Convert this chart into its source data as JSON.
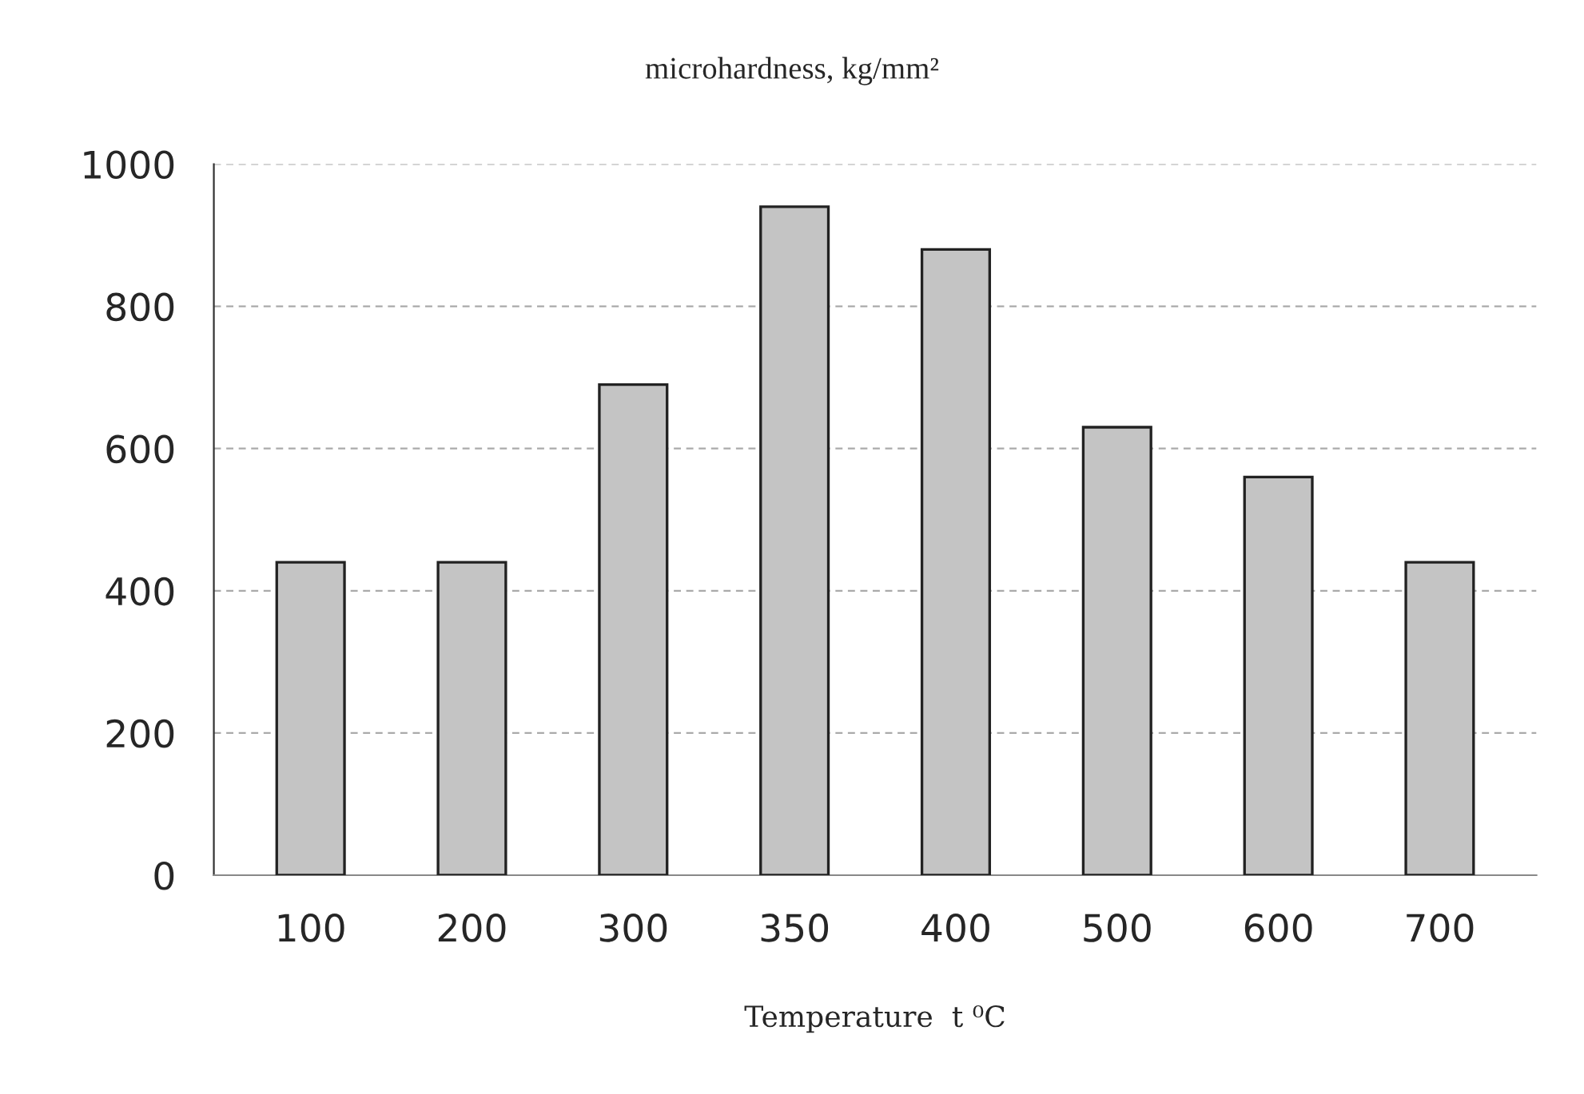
{
  "chart_data": {
    "type": "bar",
    "title": "microhardness, kg/mm²",
    "xlabel": "Temperature  t ⁰C",
    "categories": [
      "100",
      "200",
      "300",
      "350",
      "400",
      "500",
      "600",
      "700"
    ],
    "values": [
      440,
      440,
      690,
      940,
      880,
      630,
      560,
      440
    ],
    "color": "#c4c4c4",
    "ylim": [
      0,
      1000
    ],
    "yticks": [
      0,
      200,
      400,
      600,
      800,
      1000
    ],
    "grid": "y"
  }
}
